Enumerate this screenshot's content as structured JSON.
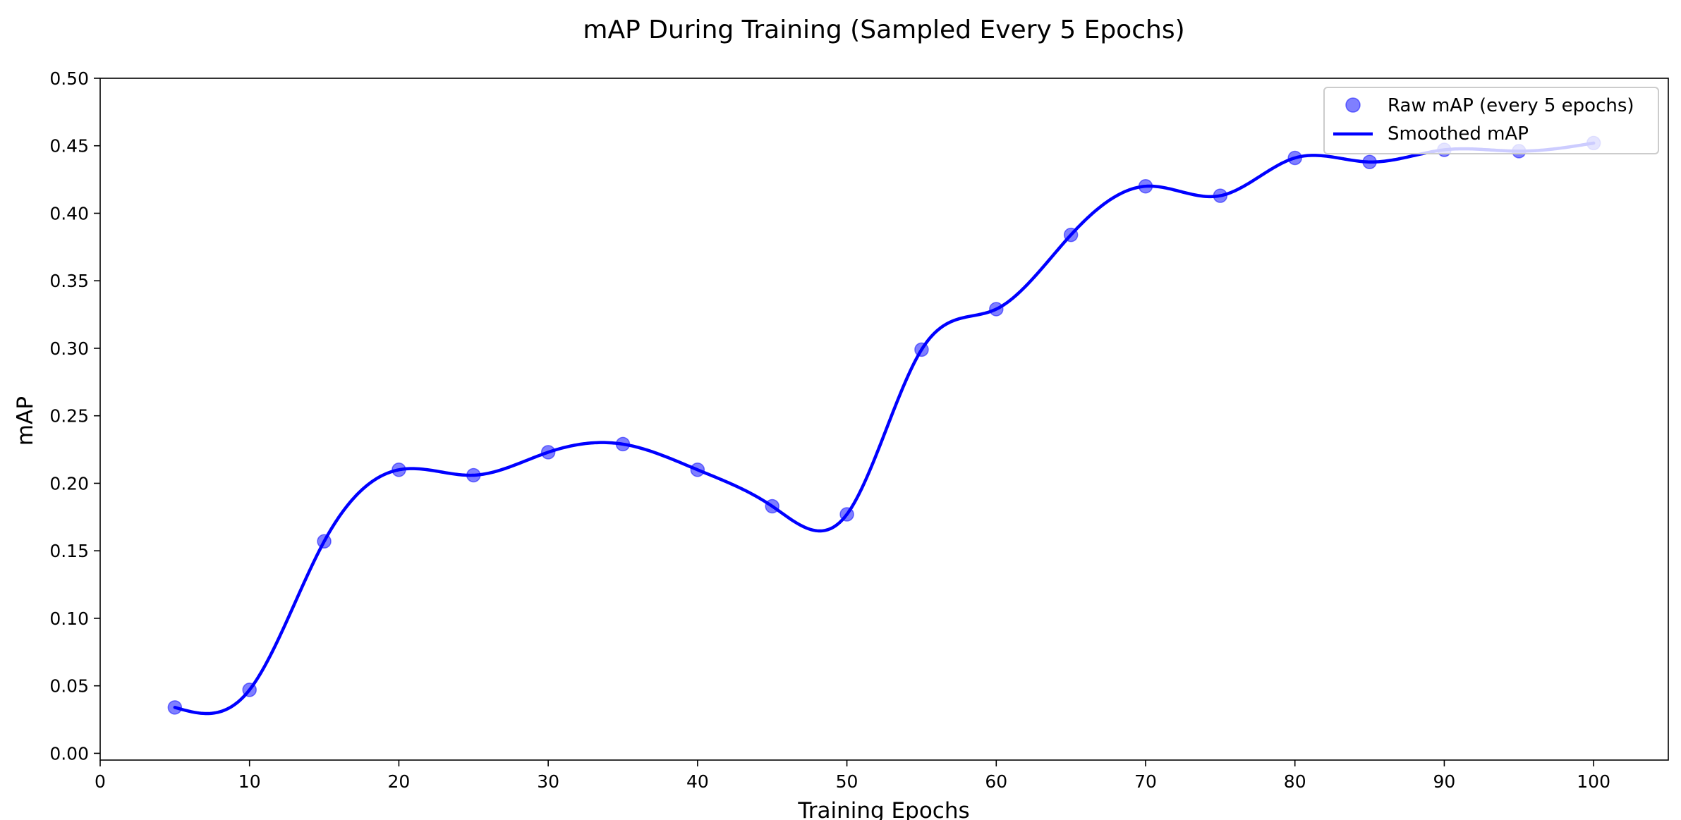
{
  "chart_data": {
    "type": "line",
    "title": "mAP During Training (Sampled Every 5 Epochs)",
    "xlabel": "Training Epochs",
    "ylabel": "mAP",
    "xlim": [
      0,
      105
    ],
    "ylim": [
      -0.005,
      0.5
    ],
    "xticks": [
      0,
      10,
      20,
      30,
      40,
      50,
      60,
      70,
      80,
      90,
      100
    ],
    "xtick_labels": [
      "0",
      "10",
      "20",
      "30",
      "40",
      "50",
      "60",
      "70",
      "80",
      "90",
      "100"
    ],
    "yticks": [
      0,
      0.05,
      0.1,
      0.15,
      0.2,
      0.25,
      0.3,
      0.35,
      0.4,
      0.45,
      0.5
    ],
    "ytick_labels": [
      "0.00",
      "0.05",
      "0.10",
      "0.15",
      "0.20",
      "0.25",
      "0.30",
      "0.35",
      "0.40",
      "0.45",
      "0.50"
    ],
    "grid": false,
    "legend_position": "top-right",
    "series": [
      {
        "name": "Raw mAP (every 5 epochs)",
        "kind": "scatter",
        "color": "#0000ff",
        "opacity": 0.5,
        "x": [
          5,
          10,
          15,
          20,
          25,
          30,
          35,
          40,
          45,
          50,
          55,
          60,
          65,
          70,
          75,
          80,
          85,
          90,
          95,
          100
        ],
        "y": [
          0.034,
          0.047,
          0.157,
          0.21,
          0.206,
          0.223,
          0.229,
          0.21,
          0.183,
          0.177,
          0.299,
          0.329,
          0.384,
          0.42,
          0.413,
          0.441,
          0.438,
          0.447,
          0.446,
          0.452
        ]
      },
      {
        "name": "Smoothed mAP",
        "kind": "line",
        "color": "#0000ff",
        "x": [
          5,
          10,
          15,
          20,
          25,
          30,
          35,
          40,
          45,
          50,
          55,
          60,
          65,
          70,
          75,
          80,
          85,
          90,
          95,
          100
        ],
        "y": [
          0.034,
          0.047,
          0.157,
          0.21,
          0.206,
          0.223,
          0.229,
          0.21,
          0.183,
          0.177,
          0.299,
          0.329,
          0.384,
          0.42,
          0.413,
          0.441,
          0.438,
          0.447,
          0.446,
          0.452
        ]
      }
    ]
  }
}
